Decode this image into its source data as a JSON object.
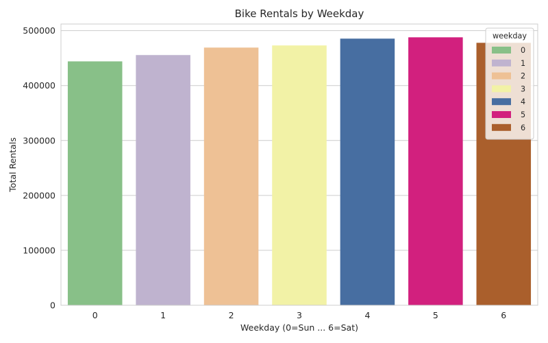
{
  "chart_data": {
    "type": "bar",
    "title": "Bike Rentals by Weekday",
    "xlabel": "Weekday (0=Sun ... 6=Sat)",
    "ylabel": "Total Rentals",
    "categories": [
      "0",
      "1",
      "2",
      "3",
      "4",
      "5",
      "6"
    ],
    "values": [
      444000,
      455500,
      469100,
      473000,
      485400,
      487800,
      477800
    ],
    "colors": [
      "#88c088",
      "#bfb3cf",
      "#eec195",
      "#f2f2a6",
      "#476ea1",
      "#d2207e",
      "#aa5f2c"
    ],
    "ylim": [
      0,
      512000
    ],
    "yticks": [
      0,
      100000,
      200000,
      300000,
      400000,
      500000
    ],
    "grid": "horizontal",
    "legend": {
      "title": "weekday",
      "placement": "top-right",
      "entries": [
        "0",
        "1",
        "2",
        "3",
        "4",
        "5",
        "6"
      ]
    }
  }
}
